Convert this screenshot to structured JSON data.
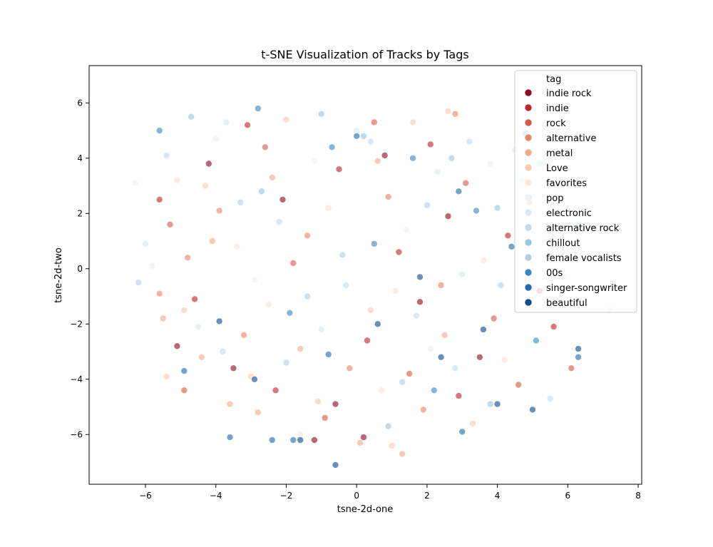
{
  "chart_data": {
    "type": "scatter",
    "title": "t-SNE Visualization of Tracks by Tags",
    "xlabel": "tsne-2d-one",
    "ylabel": "tsne-2d-two",
    "xlim": [
      -7.6,
      8.1
    ],
    "ylim": [
      -7.8,
      7.35
    ],
    "xticks": [
      -6,
      -4,
      -2,
      0,
      2,
      4,
      6,
      8
    ],
    "yticks": [
      -6,
      -4,
      -2,
      0,
      2,
      4,
      6
    ],
    "grid": false,
    "legend": {
      "placement": "top-right",
      "title": "tag",
      "entries": [
        {
          "label": "indie rock",
          "color": "#8e0c25"
        },
        {
          "label": "indie",
          "color": "#bd2631"
        },
        {
          "label": "rock",
          "color": "#d45a48"
        },
        {
          "label": "alternative",
          "color": "#e6866a"
        },
        {
          "label": "metal",
          "color": "#f1ab8b"
        },
        {
          "label": "Love",
          "color": "#f8cab4"
        },
        {
          "label": "favorites",
          "color": "#f7e4dc"
        },
        {
          "label": "pop",
          "color": "#ecf0f2"
        },
        {
          "label": "electronic",
          "color": "#dae8f1"
        },
        {
          "label": "alternative rock",
          "color": "#bedcea"
        },
        {
          "label": "chillout",
          "color": "#98c7e0"
        },
        {
          "label": "female vocalists",
          "color": "#b8cde0"
        },
        {
          "label": "00s",
          "color": "#3a89c2"
        },
        {
          "label": "singer-songwriter",
          "color": "#226bac"
        },
        {
          "label": "beautiful",
          "color": "#0f4b8d"
        }
      ]
    },
    "series": [
      {
        "name": "indie rock",
        "points": [
          [
            -4.2,
            3.8
          ],
          [
            -2.1,
            2.5
          ],
          [
            0.8,
            4.1
          ],
          [
            3.5,
            -3.2
          ],
          [
            -3.5,
            -3.6
          ],
          [
            1.8,
            -1.2
          ],
          [
            5.2,
            -0.8
          ],
          [
            -5.1,
            -2.8
          ],
          [
            2.6,
            1.9
          ],
          [
            -0.6,
            -4.9
          ],
          [
            -1.2,
            -6.2
          ],
          [
            0.2,
            -6.1
          ]
        ]
      },
      {
        "name": "indie",
        "points": [
          [
            -3.1,
            5.2
          ],
          [
            -0.5,
            3.6
          ],
          [
            2.1,
            4.5
          ],
          [
            4.3,
            1.2
          ],
          [
            -4.6,
            -1.1
          ],
          [
            0.3,
            -2.6
          ],
          [
            2.9,
            -4.6
          ],
          [
            -2.3,
            -4.4
          ],
          [
            5.6,
            -2.1
          ],
          [
            -5.6,
            2.5
          ],
          [
            1.2,
            0.6
          ]
        ]
      },
      {
        "name": "rock",
        "points": [
          [
            -5.3,
            1.6
          ],
          [
            -2.6,
            4.4
          ],
          [
            0.5,
            5.3
          ],
          [
            3.1,
            3.1
          ],
          [
            -1.8,
            0.2
          ],
          [
            1.5,
            -3.8
          ],
          [
            4.6,
            -4.2
          ],
          [
            -4.9,
            -4.4
          ],
          [
            -0.9,
            -5.4
          ],
          [
            3.9,
            -1.8
          ],
          [
            6.1,
            -3.6
          ]
        ]
      },
      {
        "name": "alternative",
        "points": [
          [
            -4.8,
            0.4
          ],
          [
            -3.9,
            2.1
          ],
          [
            -1.4,
            1.2
          ],
          [
            0.9,
            2.6
          ],
          [
            2.4,
            -0.6
          ],
          [
            -3.2,
            -2.4
          ],
          [
            -0.2,
            -3.6
          ],
          [
            1.9,
            -5.1
          ],
          [
            4.9,
            2.4
          ],
          [
            -5.6,
            -0.9
          ],
          [
            2.8,
            5.6
          ]
        ]
      },
      {
        "name": "metal",
        "points": [
          [
            -5.5,
            -1.8
          ],
          [
            -4.4,
            -3.2
          ],
          [
            -3.6,
            -4.9
          ],
          [
            -2.8,
            -5.2
          ],
          [
            -1.6,
            -2.9
          ],
          [
            0.1,
            -6.3
          ],
          [
            1.3,
            -6.7
          ],
          [
            -4.1,
            1.0
          ],
          [
            -2.4,
            3.3
          ],
          [
            0.6,
            3.9
          ],
          [
            2.5,
            -2.4
          ]
        ]
      },
      {
        "name": "Love",
        "points": [
          [
            -4.9,
            -1.5
          ],
          [
            -3.0,
            -3.9
          ],
          [
            -1.1,
            -4.8
          ],
          [
            0.4,
            -1.5
          ],
          [
            -4.3,
            3.0
          ],
          [
            -2.0,
            5.4
          ],
          [
            1.6,
            5.3
          ],
          [
            3.3,
            -5.6
          ],
          [
            -5.4,
            -3.9
          ],
          [
            1.0,
            -6.4
          ],
          [
            2.6,
            5.7
          ]
        ]
      },
      {
        "name": "favorites",
        "points": [
          [
            -5.1,
            3.2
          ],
          [
            -3.4,
            0.8
          ],
          [
            -0.8,
            2.2
          ],
          [
            1.1,
            -0.8
          ],
          [
            3.6,
            0.3
          ],
          [
            -2.5,
            -1.3
          ],
          [
            0.7,
            -4.4
          ],
          [
            4.2,
            -3.3
          ],
          [
            -1.6,
            -6.0
          ],
          [
            5.4,
            1.0
          ]
        ]
      },
      {
        "name": "pop",
        "points": [
          [
            -6.3,
            3.1
          ],
          [
            -4.0,
            4.7
          ],
          [
            -1.2,
            3.9
          ],
          [
            1.4,
            1.4
          ],
          [
            3.8,
            3.8
          ],
          [
            5.0,
            0.2
          ],
          [
            -2.9,
            -0.4
          ],
          [
            2.1,
            -2.9
          ],
          [
            6.2,
            -1.3
          ],
          [
            -5.8,
            0.1
          ]
        ]
      },
      {
        "name": "electronic",
        "points": [
          [
            -6.0,
            0.9
          ],
          [
            -3.7,
            5.3
          ],
          [
            0.0,
            5.0
          ],
          [
            2.3,
            3.5
          ],
          [
            4.5,
            4.3
          ],
          [
            5.8,
            2.9
          ],
          [
            3.0,
            -0.2
          ],
          [
            -1.0,
            -2.2
          ],
          [
            6.7,
            0.5
          ],
          [
            -4.5,
            -2.1
          ]
        ]
      },
      {
        "name": "alternative rock",
        "points": [
          [
            -5.4,
            4.1
          ],
          [
            -2.2,
            1.7
          ],
          [
            0.4,
            4.6
          ],
          [
            3.2,
            4.6
          ],
          [
            4.7,
            3.2
          ],
          [
            1.7,
            -1.7
          ],
          [
            -0.3,
            -0.6
          ],
          [
            5.5,
            -4.7
          ],
          [
            -3.8,
            -3.0
          ],
          [
            2.8,
            -3.6
          ]
        ]
      },
      {
        "name": "chillout",
        "points": [
          [
            -4.7,
            5.5
          ],
          [
            -1.0,
            5.6
          ],
          [
            0.2,
            4.8
          ],
          [
            2.7,
            4.0
          ],
          [
            4.0,
            2.2
          ],
          [
            5.2,
            3.8
          ],
          [
            6.3,
            1.6
          ],
          [
            -2.7,
            2.8
          ],
          [
            0.9,
            -5.7
          ],
          [
            3.8,
            -4.9
          ]
        ]
      },
      {
        "name": "female vocalists",
        "points": [
          [
            -6.2,
            -0.5
          ],
          [
            -3.3,
            2.4
          ],
          [
            -0.4,
            0.5
          ],
          [
            2.0,
            2.3
          ],
          [
            4.1,
            -0.6
          ],
          [
            5.9,
            -0.3
          ],
          [
            -1.4,
            -1.0
          ],
          [
            1.3,
            -4.1
          ],
          [
            -2.0,
            -3.4
          ],
          [
            7.2,
            -1.5
          ]
        ]
      },
      {
        "name": "00s",
        "points": [
          [
            -5.6,
            5.0
          ],
          [
            -2.8,
            5.8
          ],
          [
            -0.7,
            4.4
          ],
          [
            1.6,
            4.0
          ],
          [
            3.4,
            2.1
          ],
          [
            4.8,
            4.9
          ],
          [
            0.5,
            0.9
          ],
          [
            -1.9,
            -1.6
          ],
          [
            2.2,
            -4.4
          ],
          [
            5.1,
            -2.6
          ]
        ]
      },
      {
        "name": "singer-songwriter",
        "points": [
          [
            -3.6,
            -6.1
          ],
          [
            -2.4,
            -6.2
          ],
          [
            -1.8,
            -6.2
          ],
          [
            0.0,
            4.8
          ],
          [
            2.9,
            2.8
          ],
          [
            4.4,
            0.8
          ],
          [
            -0.8,
            -3.1
          ],
          [
            3.0,
            -5.9
          ],
          [
            6.3,
            -3.2
          ],
          [
            -4.9,
            -3.7
          ]
        ]
      },
      {
        "name": "beautiful",
        "points": [
          [
            -1.6,
            -6.2
          ],
          [
            -2.9,
            -4.0
          ],
          [
            0.6,
            -2.0
          ],
          [
            2.4,
            -3.2
          ],
          [
            4.0,
            -4.9
          ],
          [
            5.0,
            -5.1
          ],
          [
            6.3,
            -2.9
          ],
          [
            -3.9,
            -1.9
          ],
          [
            1.8,
            -0.3
          ],
          [
            3.6,
            -2.2
          ],
          [
            -0.6,
            -7.1
          ]
        ]
      }
    ]
  }
}
